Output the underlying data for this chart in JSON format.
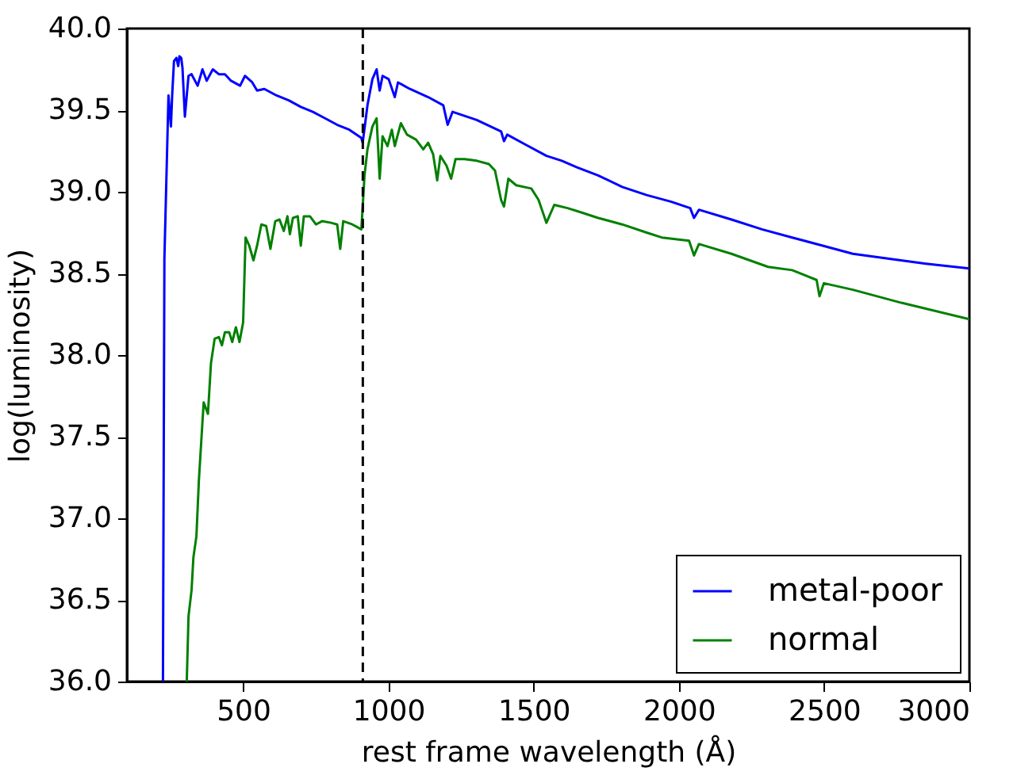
{
  "chart_data": {
    "type": "line",
    "xlabel": "rest frame wavelength (Å)",
    "ylabel": "log(luminosity)",
    "xlim": [
      100,
      3000
    ],
    "xticks": [
      500,
      1000,
      1500,
      2000,
      2500,
      3000
    ],
    "ylim": [
      36.0,
      40.0
    ],
    "yticks": [
      {
        "value": 36.0,
        "label": "36.0"
      },
      {
        "value": 36.5,
        "label": "36.5"
      },
      {
        "value": 37.0,
        "label": "37.0"
      },
      {
        "value": 37.5,
        "label": "37.5"
      },
      {
        "value": 38.0,
        "label": "38.0"
      },
      {
        "value": 38.5,
        "label": "38.5"
      },
      {
        "value": 39.0,
        "label": "39.0"
      },
      {
        "value": 39.5,
        "label": "39.5"
      },
      {
        "value": 40.0,
        "label": "40.0"
      }
    ],
    "grid": false,
    "legend": "bottom right",
    "marker": "none",
    "line_style": "solid",
    "ref_lines": [
      {
        "axis": "x",
        "value": 912,
        "color": "#000000",
        "line_style": "dashed"
      }
    ],
    "series": [
      {
        "name": "metal-poor",
        "color": "#0000ff",
        "x": [
          224,
          229,
          243,
          251.5,
          255.7,
          262,
          270.3,
          276.6,
          280.7,
          287,
          291.2,
          299.5,
          312,
          322.5,
          343.4,
          360,
          374.7,
          395.6,
          416.5,
          437.4,
          458.3,
          489.6,
          506.3,
          531.4,
          548,
          573,
          615,
          657,
          698.5,
          740,
          782,
          824,
          865.5,
          907,
          911.5,
          928,
          945,
          959.5,
          970,
          980,
          1001,
          1022,
          1033,
          1074,
          1137,
          1189,
          1204,
          1221,
          1304,
          1388,
          1398,
          1409,
          1471,
          1544,
          1597,
          1649,
          1722,
          1805,
          1889,
          1972,
          2039,
          2052,
          2069,
          2181,
          2286,
          2390,
          2495,
          2599,
          2724,
          2850,
          3000
        ],
        "values": [
          36.0,
          38.59,
          39.59,
          39.4,
          39.59,
          39.8,
          39.82,
          39.77,
          39.83,
          39.82,
          39.76,
          39.46,
          39.71,
          39.72,
          39.65,
          39.75,
          39.68,
          39.75,
          39.72,
          39.72,
          39.68,
          39.65,
          39.71,
          39.67,
          39.62,
          39.63,
          39.59,
          39.56,
          39.52,
          39.49,
          39.45,
          39.41,
          39.38,
          39.33,
          39.3,
          39.53,
          39.69,
          39.75,
          39.62,
          39.71,
          39.69,
          39.58,
          39.67,
          39.63,
          39.58,
          39.53,
          39.41,
          39.49,
          39.44,
          39.37,
          39.31,
          39.35,
          39.29,
          39.22,
          39.19,
          39.15,
          39.1,
          39.03,
          38.98,
          38.94,
          38.9,
          38.84,
          38.89,
          38.83,
          38.77,
          38.72,
          38.67,
          38.62,
          38.59,
          38.56,
          38.53
        ]
      },
      {
        "name": "normal",
        "color": "#008000",
        "x": [
          306,
          312,
          322.5,
          328.8,
          339.2,
          347.6,
          360,
          364.3,
          378.9,
          389.3,
          402,
          416.5,
          427,
          437.4,
          452,
          462.5,
          475,
          487.5,
          500,
          508.4,
          521,
          535.5,
          548,
          562.7,
          579.4,
          594,
          610.7,
          625.3,
          640,
          652.5,
          661,
          671.3,
          688,
          698.5,
          709,
          730,
          750.6,
          771.5,
          802.8,
          823.8,
          834.2,
          844.6,
          876,
          907,
          917.8,
          928,
          945,
          959.5,
          970,
          980,
          997,
          1012,
          1022,
          1043,
          1064,
          1095,
          1120,
          1137,
          1154,
          1168,
          1179,
          1200,
          1216,
          1231,
          1262,
          1304,
          1346,
          1367,
          1388,
          1398,
          1413,
          1440,
          1492,
          1517,
          1544,
          1571,
          1617,
          1670,
          1722,
          1805,
          1889,
          1941,
          2035,
          2052,
          2069,
          2181,
          2307,
          2390,
          2474,
          2484,
          2499,
          2599,
          2766,
          3000
        ],
        "values": [
          36.0,
          36.4,
          36.56,
          36.76,
          36.89,
          37.23,
          37.59,
          37.71,
          37.64,
          37.95,
          38.1,
          38.11,
          38.06,
          38.14,
          38.14,
          38.08,
          38.17,
          38.08,
          38.2,
          38.72,
          38.67,
          38.58,
          38.67,
          38.8,
          38.79,
          38.65,
          38.82,
          38.83,
          38.76,
          38.85,
          38.74,
          38.84,
          38.85,
          38.67,
          38.85,
          38.85,
          38.8,
          38.82,
          38.81,
          38.8,
          38.65,
          38.82,
          38.8,
          38.77,
          39.1,
          39.26,
          39.4,
          39.45,
          39.08,
          39.34,
          39.28,
          39.38,
          39.28,
          39.42,
          39.35,
          39.32,
          39.26,
          39.3,
          39.23,
          39.07,
          39.22,
          39.16,
          39.08,
          39.2,
          39.2,
          39.19,
          39.17,
          39.13,
          38.95,
          38.91,
          39.08,
          39.04,
          39.02,
          38.95,
          38.81,
          38.92,
          38.9,
          38.87,
          38.84,
          38.8,
          38.75,
          38.72,
          38.7,
          38.61,
          38.68,
          38.62,
          38.54,
          38.52,
          38.46,
          38.36,
          38.44,
          38.4,
          38.32,
          38.22
        ]
      }
    ]
  }
}
